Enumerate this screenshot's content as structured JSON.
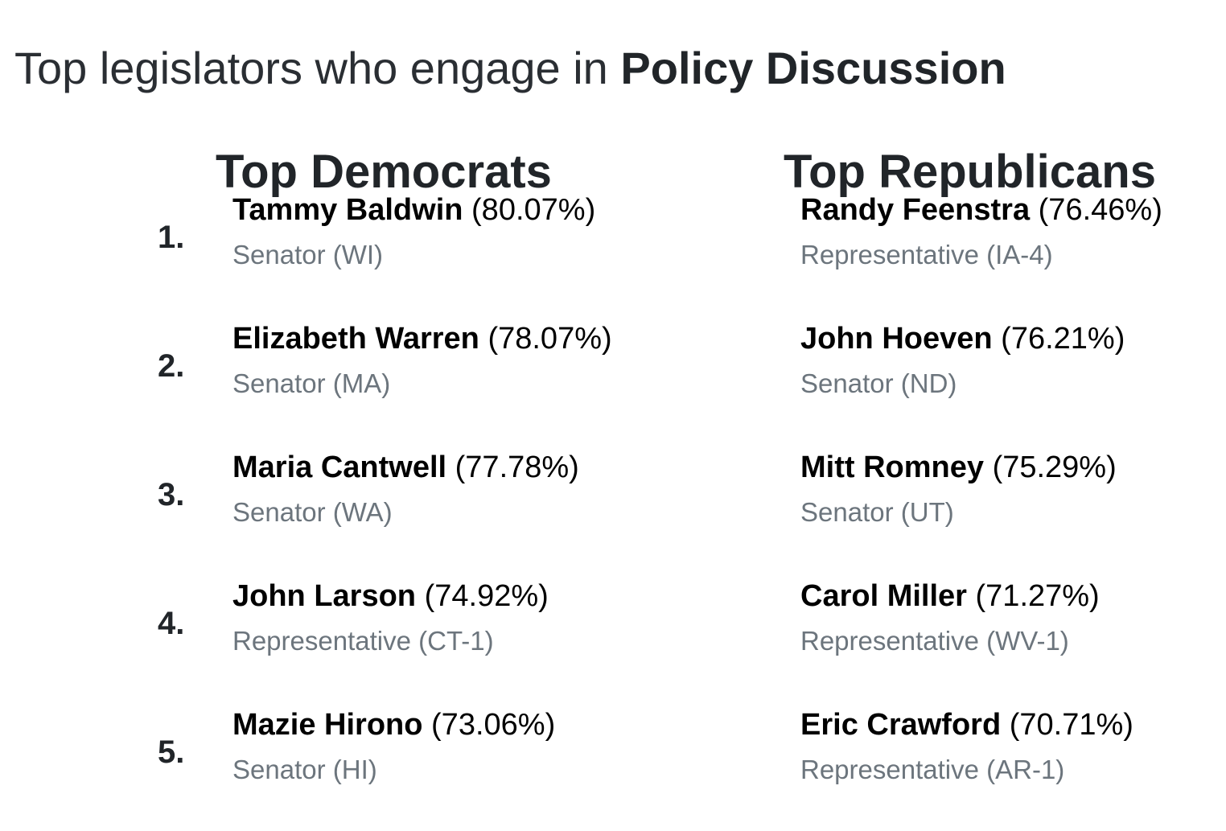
{
  "title": {
    "prefix": "Top legislators who engage in",
    "emphasis": "Policy Discussion"
  },
  "democrats": {
    "heading": "Top Democrats",
    "entries": [
      {
        "rank": "1.",
        "name": "Tammy Baldwin",
        "percent": "(80.07%)",
        "role": "Senator (WI)"
      },
      {
        "rank": "2.",
        "name": "Elizabeth Warren",
        "percent": "(78.07%)",
        "role": "Senator (MA)"
      },
      {
        "rank": "3.",
        "name": "Maria Cantwell",
        "percent": "(77.78%)",
        "role": "Senator (WA)"
      },
      {
        "rank": "4.",
        "name": "John Larson",
        "percent": "(74.92%)",
        "role": "Representative (CT-1)"
      },
      {
        "rank": "5.",
        "name": "Mazie Hirono",
        "percent": "(73.06%)",
        "role": "Senator (HI)"
      }
    ]
  },
  "republicans": {
    "heading": "Top Republicans",
    "entries": [
      {
        "name": "Randy Feenstra",
        "percent": "(76.46%)",
        "role": "Representative (IA-4)"
      },
      {
        "name": "John Hoeven",
        "percent": "(76.21%)",
        "role": "Senator (ND)"
      },
      {
        "name": "Mitt Romney",
        "percent": "(75.29%)",
        "role": "Senator (UT)"
      },
      {
        "name": "Carol Miller",
        "percent": "(71.27%)",
        "role": "Representative (WV-1)"
      },
      {
        "name": "Eric Crawford",
        "percent": "(70.71%)",
        "role": "Representative (AR-1)"
      }
    ]
  },
  "colors": {
    "heading": "#212529",
    "name": "#000000",
    "role": "#6c757d"
  }
}
